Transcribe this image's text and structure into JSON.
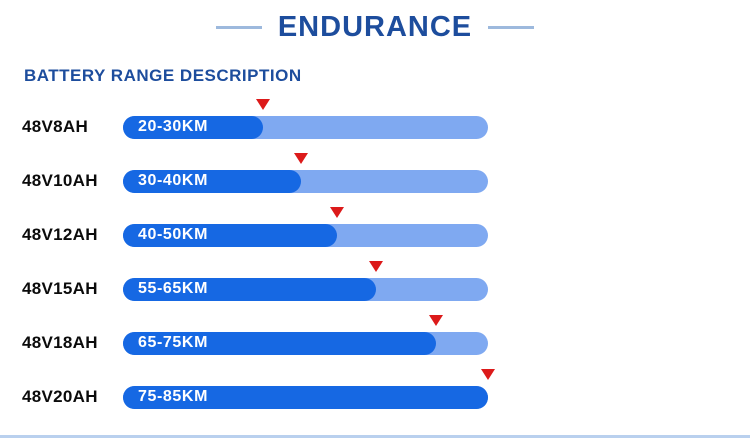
{
  "header": {
    "title": "ENDURANCE"
  },
  "section": {
    "subtitle": "BATTERY RANGE DESCRIPTION"
  },
  "colors": {
    "accent_blue": "#1d4d9d",
    "bar_track_blue": "#7fa9f1",
    "bar_fill_blue": "#1668e3",
    "marker_red": "#dc1a1a",
    "title_rule": "#9db9dd",
    "bottom_line": "#b9d0ee",
    "bar_text": "#ffffff",
    "row_label_text": "#0b0b0b"
  },
  "chart_data": {
    "type": "bar",
    "orientation": "horizontal",
    "title": "ENDURANCE",
    "subtitle": "BATTERY RANGE DESCRIPTION",
    "categories": [
      "48V8AH",
      "48V10AH",
      "48V12AH",
      "48V15AH",
      "48V18AH",
      "48V20AH"
    ],
    "range_labels": [
      "20-30KM",
      "30-40KM",
      "40-50KM",
      "55-65KM",
      "65-75KM",
      "75-85KM"
    ],
    "values_km": [
      [
        20,
        30
      ],
      [
        30,
        40
      ],
      [
        40,
        50
      ],
      [
        55,
        65
      ],
      [
        65,
        75
      ],
      [
        75,
        85
      ]
    ],
    "fill_percent": [
      38.4,
      48.8,
      58.6,
      69.3,
      85.8,
      100
    ],
    "xlim_km": [
      0,
      85
    ],
    "marker_style": "red-down-triangle-at-fill-end",
    "grid": false,
    "legend": false
  }
}
